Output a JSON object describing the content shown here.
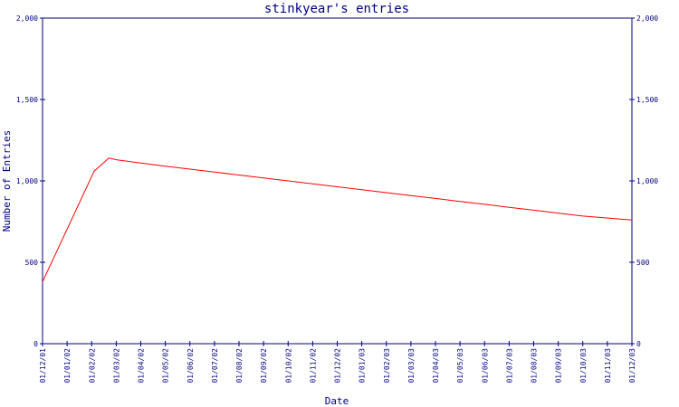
{
  "chart_data": {
    "type": "line",
    "title": "stinkyear's entries",
    "xlabel": "Date",
    "ylabel": "Number of Entries",
    "ylim": [
      0,
      2000
    ],
    "yticks": [
      0,
      500,
      1000,
      1500,
      2000
    ],
    "ytick_labels": [
      "0",
      "500",
      "1,000",
      "1,500",
      "2,000"
    ],
    "x_tick_labels": [
      "01/12/01",
      "01/01/02",
      "01/02/02",
      "01/03/02",
      "01/04/02",
      "01/05/02",
      "01/06/02",
      "01/07/02",
      "01/08/02",
      "01/09/02",
      "01/10/02",
      "01/11/02",
      "01/12/02",
      "01/01/03",
      "01/02/03",
      "01/03/03",
      "01/04/03",
      "01/05/03",
      "01/06/03",
      "01/07/03",
      "01/08/03",
      "01/09/03",
      "01/10/03",
      "01/11/03",
      "01/12/03"
    ],
    "series": [
      {
        "color": "#ff0000",
        "x": [
          "01/12/01",
          "01/01/02",
          "01/02/02",
          "01/03/02",
          "01/04/02",
          "01/05/02",
          "01/06/02",
          "01/07/02",
          "01/08/02",
          "01/09/02",
          "01/10/02",
          "01/11/02",
          "01/12/02",
          "01/01/03",
          "01/02/03",
          "01/03/03",
          "01/04/03",
          "01/05/03",
          "01/06/03",
          "01/07/03",
          "01/08/03",
          "01/09/03",
          "01/10/03",
          "01/11/03",
          "01/12/03"
        ],
        "y": [
          380,
          720,
          1060,
          1125,
          1105,
          1085,
          1065,
          1045,
          1025,
          1005,
          985,
          965,
          945,
          925,
          905,
          885,
          865,
          845,
          825,
          805,
          785,
          765,
          745,
          725,
          760
        ],
        "x_points": [
          0,
          1.05,
          2.1,
          2.7,
          3,
          4,
          5,
          6,
          7,
          8,
          9,
          10,
          11,
          12,
          13,
          14,
          15,
          16,
          17,
          18,
          19,
          20,
          21,
          22,
          24
        ],
        "y_points": [
          380,
          720,
          1060,
          1140,
          1130,
          1110,
          1090,
          1072,
          1054,
          1036,
          1018,
          1000,
          982,
          964,
          946,
          928,
          910,
          892,
          874,
          856,
          838,
          820,
          802,
          784,
          760
        ]
      }
    ],
    "grid": false,
    "colors": {
      "axis": "#000080",
      "line": "#ff0000"
    }
  }
}
